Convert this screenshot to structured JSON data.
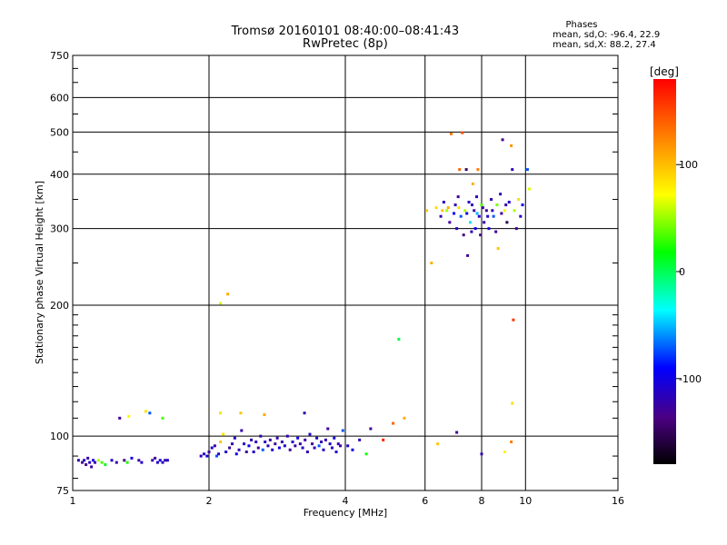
{
  "header": {
    "title_line1": "Tromsø 20160101 08:40:00–08:41:43",
    "title_line2": "RwPretec (8p)",
    "phases_title": "Phases",
    "phases_o": "mean, sd,O:  -96.4, 22.9",
    "phases_x": "mean, sd,X:   88.2, 27.4"
  },
  "chart_data": {
    "type": "scatter",
    "xlabel": "Frequency [MHz]",
    "ylabel": "Stationary phase Virtual Height [km]",
    "x_scale": "log",
    "y_scale": "log",
    "xlim": [
      1,
      16
    ],
    "ylim": [
      75,
      750
    ],
    "x_ticks": [
      1,
      2,
      4,
      6,
      8,
      10,
      16
    ],
    "y_ticks": [
      75,
      100,
      200,
      300,
      400,
      500,
      600,
      750
    ],
    "grid": true,
    "colorbar": {
      "label": "[deg]",
      "range": [
        -180,
        180
      ],
      "ticks": [
        -100,
        0,
        100
      ],
      "colormap": [
        "#000000",
        "#4b0082",
        "#0000ff",
        "#00ffff",
        "#00ff00",
        "#ffff00",
        "#ff8000",
        "#ff0000"
      ]
    },
    "points": [
      {
        "x": 1.03,
        "y": 88,
        "p": -110
      },
      {
        "x": 1.05,
        "y": 87,
        "p": -120
      },
      {
        "x": 1.06,
        "y": 88,
        "p": -100
      },
      {
        "x": 1.07,
        "y": 86,
        "p": -130
      },
      {
        "x": 1.08,
        "y": 89,
        "p": -115
      },
      {
        "x": 1.09,
        "y": 87,
        "p": -105
      },
      {
        "x": 1.1,
        "y": 85,
        "p": -120
      },
      {
        "x": 1.11,
        "y": 88,
        "p": -90
      },
      {
        "x": 1.12,
        "y": 87,
        "p": -110
      },
      {
        "x": 1.14,
        "y": 88,
        "p": 60
      },
      {
        "x": 1.16,
        "y": 87,
        "p": 40
      },
      {
        "x": 1.18,
        "y": 86,
        "p": 20
      },
      {
        "x": 1.22,
        "y": 88,
        "p": -100
      },
      {
        "x": 1.25,
        "y": 87,
        "p": -110
      },
      {
        "x": 1.3,
        "y": 88,
        "p": -120
      },
      {
        "x": 1.32,
        "y": 87,
        "p": 30
      },
      {
        "x": 1.35,
        "y": 89,
        "p": -90
      },
      {
        "x": 1.4,
        "y": 88,
        "p": -115
      },
      {
        "x": 1.42,
        "y": 87,
        "p": -100
      },
      {
        "x": 1.5,
        "y": 88,
        "p": -110
      },
      {
        "x": 1.52,
        "y": 89,
        "p": -120
      },
      {
        "x": 1.54,
        "y": 87,
        "p": -100
      },
      {
        "x": 1.56,
        "y": 88,
        "p": -90
      },
      {
        "x": 1.58,
        "y": 87,
        "p": -105
      },
      {
        "x": 1.6,
        "y": 88,
        "p": -115
      },
      {
        "x": 1.62,
        "y": 88,
        "p": -100
      },
      {
        "x": 1.27,
        "y": 110,
        "p": -120
      },
      {
        "x": 1.33,
        "y": 111,
        "p": 80
      },
      {
        "x": 1.45,
        "y": 114,
        "p": 90
      },
      {
        "x": 1.48,
        "y": 113,
        "p": -60
      },
      {
        "x": 1.58,
        "y": 110,
        "p": 40
      },
      {
        "x": 2.12,
        "y": 113,
        "p": 90
      },
      {
        "x": 2.35,
        "y": 113,
        "p": 100
      },
      {
        "x": 2.65,
        "y": 112,
        "p": 110
      },
      {
        "x": 3.25,
        "y": 113,
        "p": -110
      },
      {
        "x": 1.92,
        "y": 90,
        "p": -110
      },
      {
        "x": 1.95,
        "y": 91,
        "p": -100
      },
      {
        "x": 1.98,
        "y": 90,
        "p": -90
      },
      {
        "x": 2.0,
        "y": 92,
        "p": -120
      },
      {
        "x": 2.03,
        "y": 94,
        "p": -100
      },
      {
        "x": 2.06,
        "y": 95,
        "p": -110
      },
      {
        "x": 2.08,
        "y": 90,
        "p": -60
      },
      {
        "x": 2.1,
        "y": 91,
        "p": -110
      },
      {
        "x": 2.12,
        "y": 97,
        "p": 100
      },
      {
        "x": 2.15,
        "y": 101,
        "p": 90
      },
      {
        "x": 2.18,
        "y": 92,
        "p": -100
      },
      {
        "x": 2.22,
        "y": 94,
        "p": -120
      },
      {
        "x": 2.25,
        "y": 96,
        "p": -110
      },
      {
        "x": 2.28,
        "y": 99,
        "p": -100
      },
      {
        "x": 2.3,
        "y": 91,
        "p": -90
      },
      {
        "x": 2.33,
        "y": 93,
        "p": -110
      },
      {
        "x": 2.36,
        "y": 103,
        "p": -110
      },
      {
        "x": 2.39,
        "y": 96,
        "p": -105
      },
      {
        "x": 2.42,
        "y": 92,
        "p": -120
      },
      {
        "x": 2.45,
        "y": 95,
        "p": -80
      },
      {
        "x": 2.48,
        "y": 98,
        "p": -110
      },
      {
        "x": 2.51,
        "y": 92,
        "p": -100
      },
      {
        "x": 2.54,
        "y": 97,
        "p": -110
      },
      {
        "x": 2.57,
        "y": 94,
        "p": -120
      },
      {
        "x": 2.6,
        "y": 100,
        "p": -110
      },
      {
        "x": 2.63,
        "y": 93,
        "p": -60
      },
      {
        "x": 2.66,
        "y": 97,
        "p": -100
      },
      {
        "x": 2.7,
        "y": 95,
        "p": -110
      },
      {
        "x": 2.73,
        "y": 98,
        "p": -115
      },
      {
        "x": 2.76,
        "y": 93,
        "p": -100
      },
      {
        "x": 2.8,
        "y": 96,
        "p": -120
      },
      {
        "x": 2.83,
        "y": 99,
        "p": -110
      },
      {
        "x": 2.86,
        "y": 94,
        "p": -90
      },
      {
        "x": 2.9,
        "y": 97,
        "p": -110
      },
      {
        "x": 2.94,
        "y": 95,
        "p": -100
      },
      {
        "x": 2.98,
        "y": 100,
        "p": -110
      },
      {
        "x": 3.02,
        "y": 93,
        "p": -120
      },
      {
        "x": 3.06,
        "y": 97,
        "p": -100
      },
      {
        "x": 3.1,
        "y": 95,
        "p": -110
      },
      {
        "x": 3.14,
        "y": 99,
        "p": -90
      },
      {
        "x": 3.18,
        "y": 96,
        "p": -110
      },
      {
        "x": 3.22,
        "y": 94,
        "p": -100
      },
      {
        "x": 3.26,
        "y": 98,
        "p": -115
      },
      {
        "x": 3.3,
        "y": 92,
        "p": -110
      },
      {
        "x": 3.34,
        "y": 101,
        "p": -100
      },
      {
        "x": 3.38,
        "y": 96,
        "p": -120
      },
      {
        "x": 3.42,
        "y": 94,
        "p": -110
      },
      {
        "x": 3.46,
        "y": 99,
        "p": -100
      },
      {
        "x": 3.5,
        "y": 95,
        "p": -60
      },
      {
        "x": 3.54,
        "y": 97,
        "p": -110
      },
      {
        "x": 3.58,
        "y": 93,
        "p": -100
      },
      {
        "x": 3.62,
        "y": 98,
        "p": -110
      },
      {
        "x": 3.66,
        "y": 104,
        "p": -120
      },
      {
        "x": 3.7,
        "y": 96,
        "p": -100
      },
      {
        "x": 3.74,
        "y": 94,
        "p": -110
      },
      {
        "x": 3.78,
        "y": 99,
        "p": -90
      },
      {
        "x": 3.82,
        "y": 92,
        "p": -100
      },
      {
        "x": 3.86,
        "y": 96,
        "p": -110
      },
      {
        "x": 3.9,
        "y": 95,
        "p": -120
      },
      {
        "x": 3.95,
        "y": 103,
        "p": -60
      },
      {
        "x": 4.05,
        "y": 95,
        "p": -100
      },
      {
        "x": 4.15,
        "y": 93,
        "p": -90
      },
      {
        "x": 4.3,
        "y": 98,
        "p": -110
      },
      {
        "x": 4.45,
        "y": 91,
        "p": 30
      },
      {
        "x": 4.55,
        "y": 104,
        "p": -120
      },
      {
        "x": 4.85,
        "y": 98,
        "p": 170
      },
      {
        "x": 5.1,
        "y": 107,
        "p": 140
      },
      {
        "x": 5.4,
        "y": 110,
        "p": 110
      },
      {
        "x": 5.25,
        "y": 167,
        "p": 10
      },
      {
        "x": 6.4,
        "y": 96,
        "p": 100
      },
      {
        "x": 7.05,
        "y": 102,
        "p": -120
      },
      {
        "x": 8.0,
        "y": 91,
        "p": -110
      },
      {
        "x": 9.0,
        "y": 92,
        "p": 80
      },
      {
        "x": 9.3,
        "y": 97,
        "p": 130
      },
      {
        "x": 9.35,
        "y": 119,
        "p": 90
      },
      {
        "x": 9.4,
        "y": 185,
        "p": 160
      },
      {
        "x": 2.12,
        "y": 202,
        "p": 70
      },
      {
        "x": 2.2,
        "y": 212,
        "p": 110
      },
      {
        "x": 6.05,
        "y": 330,
        "p": 100
      },
      {
        "x": 6.2,
        "y": 250,
        "p": 110
      },
      {
        "x": 6.35,
        "y": 335,
        "p": 90
      },
      {
        "x": 6.5,
        "y": 320,
        "p": -110
      },
      {
        "x": 6.6,
        "y": 345,
        "p": -100
      },
      {
        "x": 6.7,
        "y": 330,
        "p": 60
      },
      {
        "x": 6.8,
        "y": 310,
        "p": -120
      },
      {
        "x": 6.85,
        "y": 495,
        "p": 130
      },
      {
        "x": 6.95,
        "y": 325,
        "p": -80
      },
      {
        "x": 7.0,
        "y": 340,
        "p": -110
      },
      {
        "x": 7.05,
        "y": 300,
        "p": -100
      },
      {
        "x": 7.1,
        "y": 355,
        "p": -120
      },
      {
        "x": 7.15,
        "y": 410,
        "p": 140
      },
      {
        "x": 7.2,
        "y": 320,
        "p": -60
      },
      {
        "x": 7.25,
        "y": 498,
        "p": 150
      },
      {
        "x": 7.3,
        "y": 290,
        "p": -130
      },
      {
        "x": 7.35,
        "y": 330,
        "p": 60
      },
      {
        "x": 7.4,
        "y": 410,
        "p": -140
      },
      {
        "x": 7.45,
        "y": 260,
        "p": -120
      },
      {
        "x": 7.5,
        "y": 345,
        "p": -100
      },
      {
        "x": 7.55,
        "y": 310,
        "p": -30
      },
      {
        "x": 7.6,
        "y": 295,
        "p": -110
      },
      {
        "x": 7.65,
        "y": 380,
        "p": 110
      },
      {
        "x": 7.7,
        "y": 330,
        "p": -120
      },
      {
        "x": 7.75,
        "y": 300,
        "p": -80
      },
      {
        "x": 7.8,
        "y": 355,
        "p": -110
      },
      {
        "x": 7.85,
        "y": 410,
        "p": 130
      },
      {
        "x": 7.9,
        "y": 320,
        "p": -100
      },
      {
        "x": 7.95,
        "y": 290,
        "p": -130
      },
      {
        "x": 8.0,
        "y": 340,
        "p": 40
      },
      {
        "x": 8.1,
        "y": 310,
        "p": -110
      },
      {
        "x": 8.2,
        "y": 330,
        "p": -120
      },
      {
        "x": 8.3,
        "y": 300,
        "p": -90
      },
      {
        "x": 8.4,
        "y": 350,
        "p": -110
      },
      {
        "x": 8.5,
        "y": 320,
        "p": -60
      },
      {
        "x": 8.6,
        "y": 295,
        "p": -120
      },
      {
        "x": 8.7,
        "y": 270,
        "p": 100
      },
      {
        "x": 8.8,
        "y": 360,
        "p": -110
      },
      {
        "x": 8.9,
        "y": 480,
        "p": -130
      },
      {
        "x": 9.0,
        "y": 330,
        "p": 80
      },
      {
        "x": 9.1,
        "y": 310,
        "p": -150
      },
      {
        "x": 9.2,
        "y": 345,
        "p": -100
      },
      {
        "x": 9.3,
        "y": 465,
        "p": 120
      },
      {
        "x": 9.35,
        "y": 410,
        "p": -110
      },
      {
        "x": 9.45,
        "y": 330,
        "p": 60
      },
      {
        "x": 9.55,
        "y": 300,
        "p": -120
      },
      {
        "x": 9.65,
        "y": 350,
        "p": 90
      },
      {
        "x": 9.75,
        "y": 320,
        "p": -100
      },
      {
        "x": 9.85,
        "y": 340,
        "p": -90
      },
      {
        "x": 10.2,
        "y": 370,
        "p": 70
      },
      {
        "x": 10.1,
        "y": 410,
        "p": -60
      },
      {
        "x": 6.55,
        "y": 330,
        "p": 100
      },
      {
        "x": 6.75,
        "y": 335,
        "p": 110
      },
      {
        "x": 7.12,
        "y": 335,
        "p": 90
      },
      {
        "x": 7.42,
        "y": 325,
        "p": -90
      },
      {
        "x": 7.62,
        "y": 340,
        "p": -110
      },
      {
        "x": 7.82,
        "y": 325,
        "p": -40
      },
      {
        "x": 8.05,
        "y": 335,
        "p": -120
      },
      {
        "x": 8.25,
        "y": 320,
        "p": -100
      },
      {
        "x": 8.45,
        "y": 330,
        "p": -110
      },
      {
        "x": 8.65,
        "y": 340,
        "p": 50
      },
      {
        "x": 8.85,
        "y": 325,
        "p": -120
      },
      {
        "x": 9.05,
        "y": 340,
        "p": -110
      }
    ]
  }
}
